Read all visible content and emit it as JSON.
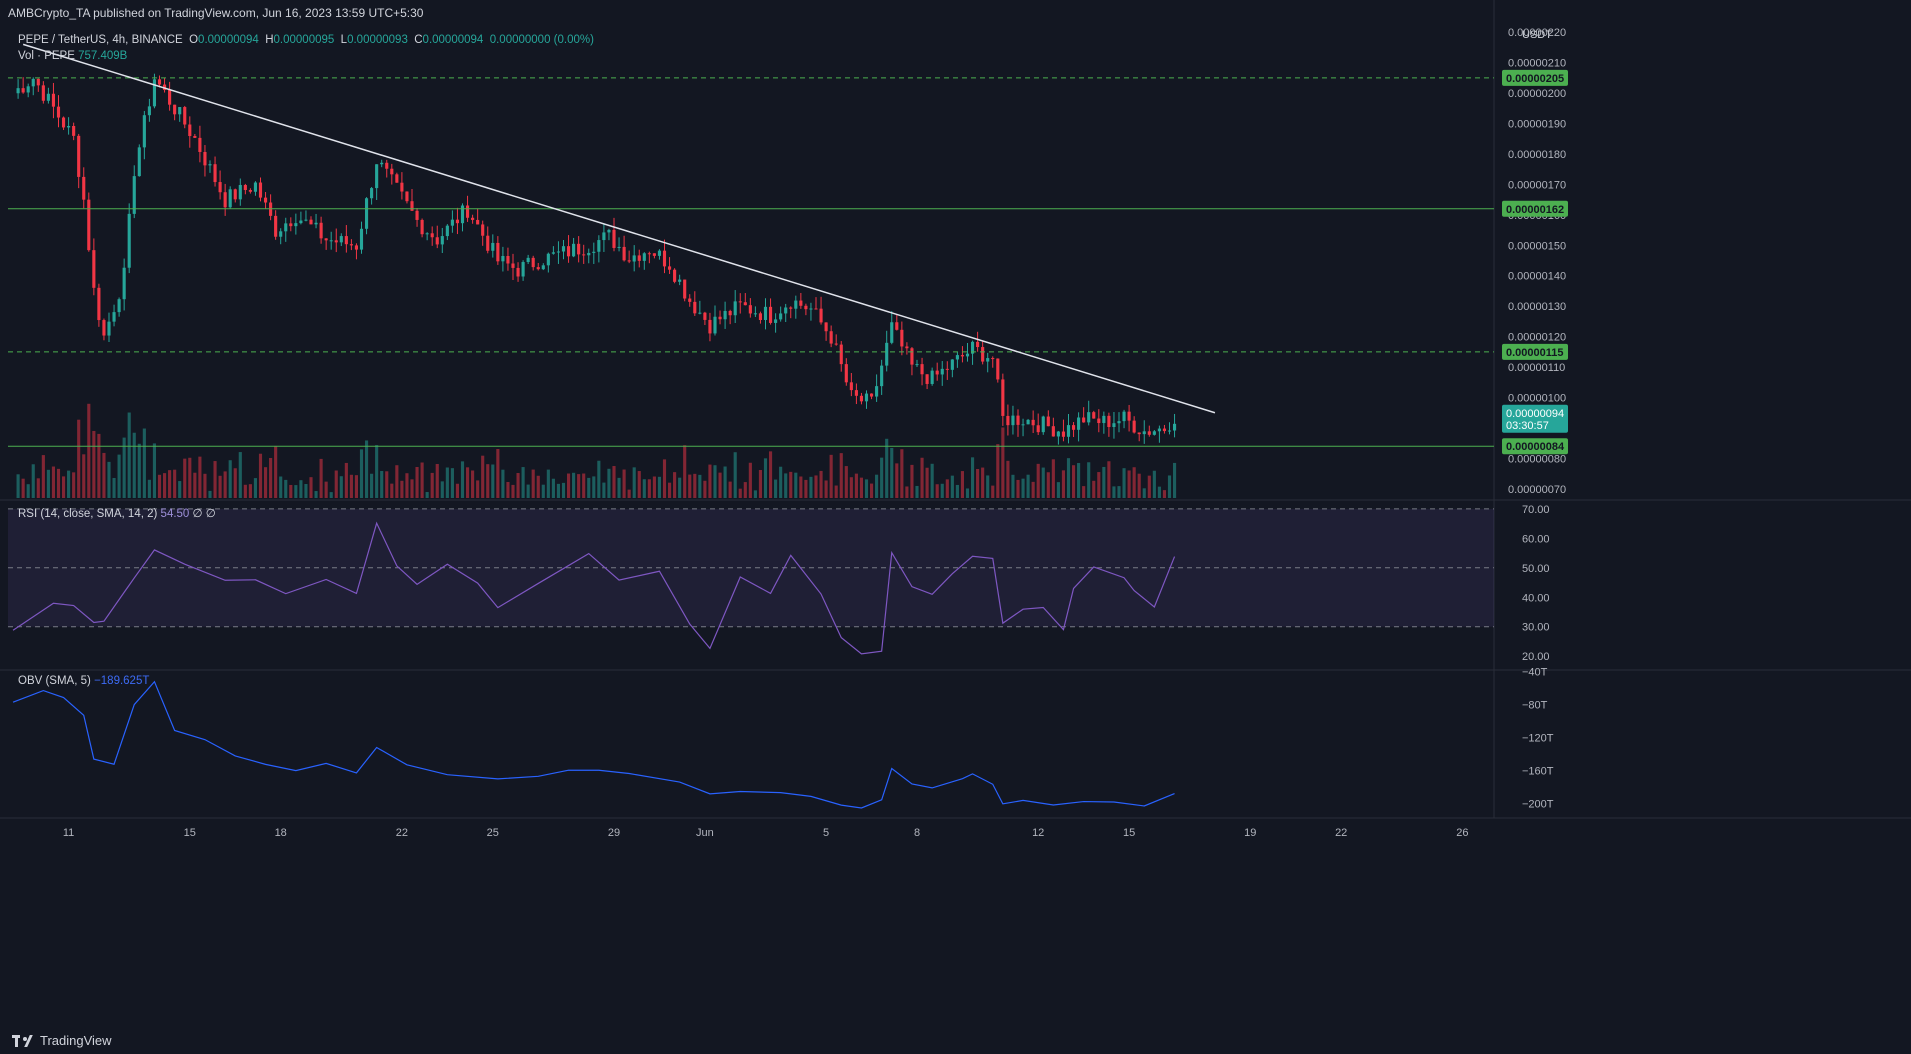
{
  "header": {
    "published": "AMBCrypto_TA published on TradingView.com, Jun 16, 2023 13:59 UTC+5:30"
  },
  "legend": {
    "symbol": "PEPE / TetherUS, 4h, BINANCE",
    "o_label": "O",
    "o": "0.00000094",
    "h_label": "H",
    "h": "0.00000095",
    "l_label": "L",
    "l": "0.00000093",
    "c_label": "C",
    "c": "0.00000094",
    "change": "0.00000000 (0.00%)",
    "vol_label": "Vol · PEPE",
    "vol": "757.409B",
    "rsi_label": "RSI (14, close, SMA, 14, 2)",
    "rsi": "54.50",
    "rsi_extra": "∅ ∅",
    "obv_label": "OBV (SMA, 5)",
    "obv": "−189.625T"
  },
  "footer": {
    "brand": "TradingView"
  },
  "colors": {
    "bg": "#131722",
    "up": "#26a69a",
    "down": "#f23645",
    "level": "#4caf50",
    "rsi": "#7e57c2",
    "obv": "#2962ff"
  },
  "chart_data": [
    {
      "type": "candlestick",
      "title": "PEPE / TetherUS, 4h, BINANCE",
      "currency": "USDT",
      "x_ticks": [
        "11",
        "15",
        "18",
        "22",
        "25",
        "29",
        "Jun",
        "5",
        "8",
        "12",
        "15",
        "19",
        "22",
        "26"
      ],
      "y_ticks": [
        "0.00000070",
        "0.00000080",
        "0.00000090",
        "0.00000100",
        "0.00000110",
        "0.00000120",
        "0.00000130",
        "0.00000140",
        "0.00000150",
        "0.00000160",
        "0.00000170",
        "0.00000180",
        "0.00000190",
        "0.00000200",
        "0.00000210",
        "0.00000220"
      ],
      "ylim": [
        6.7e-07,
        2.24e-06
      ],
      "price_close_waypoints": [
        [
          "May 9 04:00",
          2e-06
        ],
        [
          "May 9 20:00",
          2.05e-06
        ],
        [
          "May 10 12:00",
          1.95e-06
        ],
        [
          "May 11 04:00",
          1.85e-06
        ],
        [
          "May 11 12:00",
          1.65e-06
        ],
        [
          "May 11 20:00",
          1.35e-06
        ],
        [
          "May 12 04:00",
          1.2e-06
        ],
        [
          "May 12 20:00",
          1.4e-06
        ],
        [
          "May 13 04:00",
          1.75e-06
        ],
        [
          "May 13 20:00",
          2.05e-06
        ],
        [
          "May 14 12:00",
          1.95e-06
        ],
        [
          "May 15 04:00",
          1.85e-06
        ],
        [
          "May 16 04:00",
          1.65e-06
        ],
        [
          "May 17 04:00",
          1.7e-06
        ],
        [
          "May 17 20:00",
          1.55e-06
        ],
        [
          "May 18 12:00",
          1.6e-06
        ],
        [
          "May 19 12:00",
          1.52e-06
        ],
        [
          "May 20 12:00",
          1.5e-06
        ],
        [
          "May 21 04:00",
          1.78e-06
        ],
        [
          "May 21 20:00",
          1.68e-06
        ],
        [
          "May 22 12:00",
          1.58e-06
        ],
        [
          "May 23 04:00",
          1.52e-06
        ],
        [
          "May 24 04:00",
          1.62e-06
        ],
        [
          "May 25 04:00",
          1.45e-06
        ],
        [
          "May 25 20:00",
          1.42e-06
        ],
        [
          "May 26 12:00",
          1.45e-06
        ],
        [
          "May 27 04:00",
          1.47e-06
        ],
        [
          "May 28 04:00",
          1.5e-06
        ],
        [
          "May 28 20:00",
          1.53e-06
        ],
        [
          "May 29 12:00",
          1.46e-06
        ],
        [
          "May 30 04:00",
          1.49e-06
        ],
        [
          "May 30 20:00",
          1.44e-06
        ],
        [
          "May 31 12:00",
          1.32e-06
        ],
        [
          "Jun 1 04:00",
          1.24e-06
        ],
        [
          "Jun 2 04:00",
          1.3e-06
        ],
        [
          "Jun 3 04:00",
          1.27e-06
        ],
        [
          "Jun 3 20:00",
          1.32e-06
        ],
        [
          "Jun 4 12:00",
          1.29e-06
        ],
        [
          "Jun 5 04:00",
          1.2e-06
        ],
        [
          "Jun 5 20:00",
          1e-06
        ],
        [
          "Jun 6 12:00",
          9.8e-07
        ],
        [
          "Jun 7 04:00",
          1.23e-06
        ],
        [
          "Jun 7 20:00",
          1.1e-06
        ],
        [
          "Jun 8 12:00",
          1.06e-06
        ],
        [
          "Jun 9 04:00",
          1.11e-06
        ],
        [
          "Jun 9 20:00",
          1.16e-06
        ],
        [
          "Jun 10 12:00",
          1.13e-06
        ],
        [
          "Jun 10 20:00",
          9.3e-07
        ],
        [
          "Jun 11 12:00",
          9.3e-07
        ],
        [
          "Jun 12 04:00",
          9.1e-07
        ],
        [
          "Jun 12 20:00",
          8.9e-07
        ],
        [
          "Jun 13 12:00",
          9.3e-07
        ],
        [
          "Jun 14 04:00",
          9.2e-07
        ],
        [
          "Jun 14 20:00",
          9.3e-07
        ],
        [
          "Jun 15 12:00",
          8.9e-07
        ],
        [
          "Jun 16 04:00",
          9e-07
        ],
        [
          "Jun 16 12:00",
          9.4e-07
        ]
      ],
      "level_lines": [
        {
          "label": "0.00000205",
          "value": 2.05e-06,
          "style": "dashed"
        },
        {
          "label": "0.00000162",
          "value": 1.62e-06,
          "style": "solid"
        },
        {
          "label": "0.00000115",
          "value": 1.15e-06,
          "style": "dashed"
        },
        {
          "label": "0.00000084",
          "value": 8.4e-07,
          "style": "solid"
        }
      ],
      "last_price": {
        "label": "0.00000094",
        "countdown": "03:30:57",
        "value": 9.4e-07
      },
      "trendline": {
        "from": [
          "May 9 12:00",
          2.16e-06
        ],
        "to": [
          "Jun 17 20:00",
          9.5e-07
        ]
      }
    },
    {
      "type": "line",
      "title": "RSI (14, close, SMA, 14, 2)",
      "y_ticks": [
        "20.00",
        "30.00",
        "40.00",
        "50.00",
        "60.00",
        "70.00"
      ],
      "ylim": [
        16,
        73
      ],
      "band": [
        30,
        70
      ],
      "midline": 50,
      "waypoints": [
        [
          "May 9 04:00",
          30
        ],
        [
          "May 10 12:00",
          38
        ],
        [
          "May 11 04:00",
          36
        ],
        [
          "May 11 20:00",
          30
        ],
        [
          "May 12 04:00",
          32
        ],
        [
          "May 13 04:00",
          48
        ],
        [
          "May 13 20:00",
          55
        ],
        [
          "May 14 20:00",
          50
        ],
        [
          "May 16 04:00",
          45
        ],
        [
          "May 17 04:00",
          47
        ],
        [
          "May 18 04:00",
          42
        ],
        [
          "May 19 12:00",
          46
        ],
        [
          "May 20 12:00",
          42
        ],
        [
          "May 21 04:00",
          64
        ],
        [
          "May 21 20:00",
          50
        ],
        [
          "May 22 12:00",
          44
        ],
        [
          "May 23 12:00",
          52
        ],
        [
          "May 24 12:00",
          44
        ],
        [
          "May 25 04:00",
          36
        ],
        [
          "May 26 12:00",
          44
        ],
        [
          "May 28 04:00",
          56
        ],
        [
          "May 29 04:00",
          45
        ],
        [
          "May 30 12:00",
          48
        ],
        [
          "May 31 12:00",
          32
        ],
        [
          "Jun 1 04:00",
          23
        ],
        [
          "Jun 2 04:00",
          46
        ],
        [
          "Jun 3 04:00",
          42
        ],
        [
          "Jun 3 20:00",
          53
        ],
        [
          "Jun 4 20:00",
          42
        ],
        [
          "Jun 5 12:00",
          25
        ],
        [
          "Jun 6 04:00",
          20
        ],
        [
          "Jun 6 20:00",
          22
        ],
        [
          "Jun 7 04:00",
          55
        ],
        [
          "Jun 7 20:00",
          44
        ],
        [
          "Jun 8 12:00",
          40
        ],
        [
          "Jun 9 04:00",
          48
        ],
        [
          "Jun 9 20:00",
          55
        ],
        [
          "Jun 10 12:00",
          52
        ],
        [
          "Jun 10 20:00",
          32
        ],
        [
          "Jun 11 12:00",
          36
        ],
        [
          "Jun 12 04:00",
          38
        ],
        [
          "Jun 12 20:00",
          30
        ],
        [
          "Jun 13 04:00",
          42
        ],
        [
          "Jun 13 20:00",
          50
        ],
        [
          "Jun 14 20:00",
          46
        ],
        [
          "Jun 15 04:00",
          42
        ],
        [
          "Jun 15 20:00",
          38
        ],
        [
          "Jun 16 12:00",
          54.5
        ]
      ]
    },
    {
      "type": "line",
      "title": "OBV (SMA, 5)",
      "y_ticks": [
        "−200T",
        "−160T",
        "−120T",
        "−80T",
        "−40T"
      ],
      "y_tick_values": [
        -200,
        -160,
        -120,
        -80,
        -40
      ],
      "ylim": [
        -210,
        -38
      ],
      "waypoints": [
        [
          "May 9 04:00",
          -75
        ],
        [
          "May 10 04:00",
          -65
        ],
        [
          "May 10 20:00",
          -70
        ],
        [
          "May 11 12:00",
          -90
        ],
        [
          "May 11 20:00",
          -145
        ],
        [
          "May 12 12:00",
          -150
        ],
        [
          "May 13 04:00",
          -80
        ],
        [
          "May 13 20:00",
          -55
        ],
        [
          "May 14 12:00",
          -110
        ],
        [
          "May 15 12:00",
          -120
        ],
        [
          "May 16 12:00",
          -140
        ],
        [
          "May 17 12:00",
          -150
        ],
        [
          "May 18 12:00",
          -158
        ],
        [
          "May 19 12:00",
          -150
        ],
        [
          "May 20 12:00",
          -160
        ],
        [
          "May 21 04:00",
          -130
        ],
        [
          "May 22 04:00",
          -155
        ],
        [
          "May 23 12:00",
          -165
        ],
        [
          "May 25 04:00",
          -170
        ],
        [
          "May 26 12:00",
          -165
        ],
        [
          "May 27 12:00",
          -162
        ],
        [
          "May 28 12:00",
          -160
        ],
        [
          "May 29 12:00",
          -165
        ],
        [
          "May 31 04:00",
          -175
        ],
        [
          "Jun 1 04:00",
          -190
        ],
        [
          "Jun 2 04:00",
          -188
        ],
        [
          "Jun 3 12:00",
          -185
        ],
        [
          "Jun 4 12:00",
          -192
        ],
        [
          "Jun 5 12:00",
          -200
        ],
        [
          "Jun 6 04:00",
          -208
        ],
        [
          "Jun 6 20:00",
          -195
        ],
        [
          "Jun 7 04:00",
          -160
        ],
        [
          "Jun 7 20:00",
          -175
        ],
        [
          "Jun 8 12:00",
          -182
        ],
        [
          "Jun 9 12:00",
          -170
        ],
        [
          "Jun 9 20:00",
          -165
        ],
        [
          "Jun 10 12:00",
          -178
        ],
        [
          "Jun 10 20:00",
          -200
        ],
        [
          "Jun 11 12:00",
          -196
        ],
        [
          "Jun 12 12:00",
          -199
        ],
        [
          "Jun 13 12:00",
          -195
        ],
        [
          "Jun 14 12:00",
          -196
        ],
        [
          "Jun 15 12:00",
          -200
        ],
        [
          "Jun 16 12:00",
          -190
        ]
      ]
    }
  ]
}
